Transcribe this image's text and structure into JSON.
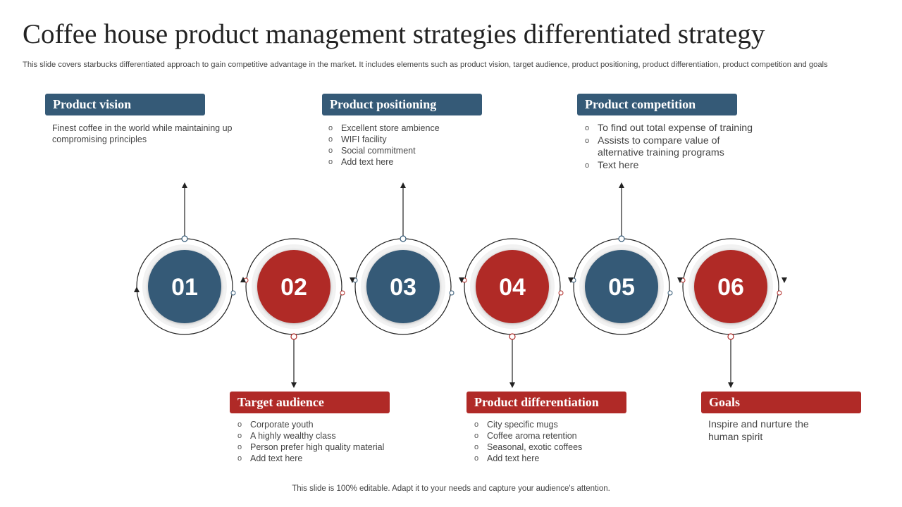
{
  "title": "Coffee house product management strategies differentiated strategy",
  "subtitle": "This slide covers starbucks differentiated approach to gain competitive advantage in the market. It includes elements such as product vision, target audience, product positioning, product differentiation, product competition and goals",
  "steps": [
    {
      "number": "01",
      "color": "#355a77",
      "header": "Product vision",
      "description": "Finest coffee in the world while maintaining up compromising principles"
    },
    {
      "number": "02",
      "color": "#b02a27",
      "header": "Target audience",
      "bullets": [
        "Corporate youth",
        "A highly wealthy class",
        "Person prefer high quality material",
        "Add text here"
      ]
    },
    {
      "number": "03",
      "color": "#355a77",
      "header": "Product positioning",
      "bullets": [
        "Excellent store ambience",
        "WIFI facility",
        "Social commitment",
        "Add text here"
      ]
    },
    {
      "number": "04",
      "color": "#b02a27",
      "header": "Product differentiation",
      "bullets": [
        "City specific mugs",
        "Coffee  aroma retention",
        "Seasonal, exotic coffees",
        "Add text here"
      ]
    },
    {
      "number": "05",
      "color": "#355a77",
      "header": "Product competition",
      "bullets": [
        "To find out total expense of training",
        "Assists to compare value of alternative training programs",
        "Text here"
      ]
    },
    {
      "number": "06",
      "color": "#b02a27",
      "header": "Goals",
      "description": "Inspire and nurture the human spirit"
    }
  ],
  "footer": "This slide is 100% editable. Adapt it to your needs and capture your audience's attention."
}
